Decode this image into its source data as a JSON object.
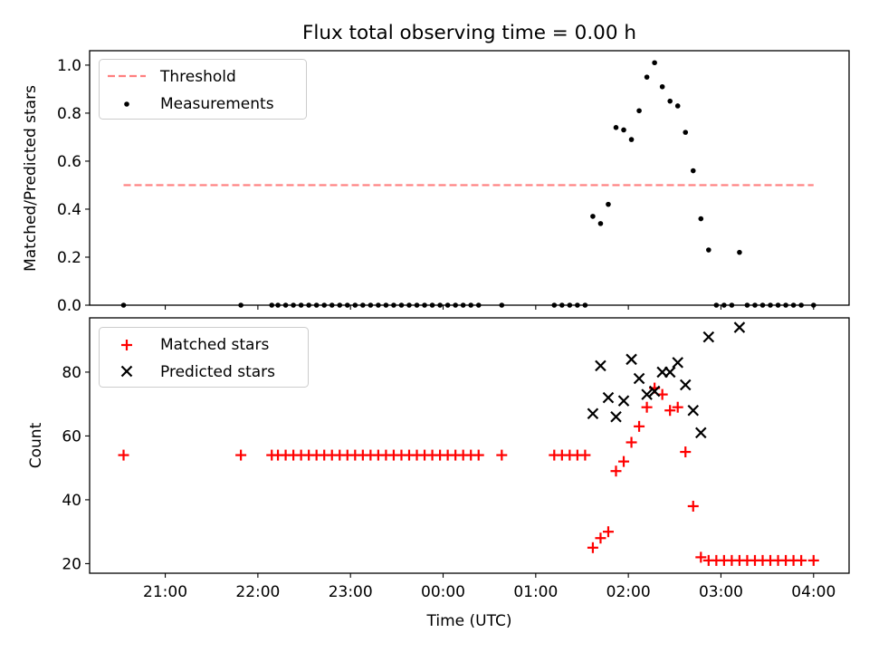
{
  "chart_data": [
    {
      "type": "scatter",
      "title": "Flux total observing time = 0.00 h",
      "xlabel": "",
      "ylabel": "Matched/Predicted stars",
      "ylim": [
        0,
        1.06
      ],
      "yticks": [
        "0.0",
        "0.2",
        "0.4",
        "0.6",
        "0.8",
        "1.0"
      ],
      "grid": false,
      "legend_position": "top-left",
      "threshold": {
        "name": "Threshold",
        "value": 0.5,
        "x_start": "20:33",
        "x_end": "04:00",
        "color": "#ff7f7f",
        "style": "dashed"
      },
      "series": [
        {
          "name": "Measurements",
          "color": "#000000",
          "marker": "dot",
          "x": [
            "20:33",
            "21:49",
            "22:09",
            "22:13",
            "22:18",
            "22:23",
            "22:28",
            "22:33",
            "22:38",
            "22:43",
            "22:48",
            "22:53",
            "22:58",
            "23:03",
            "23:08",
            "23:13",
            "23:18",
            "23:23",
            "23:28",
            "23:33",
            "23:38",
            "23:43",
            "23:48",
            "23:53",
            "23:58",
            "00:03",
            "00:08",
            "00:13",
            "00:18",
            "00:23",
            "00:38",
            "01:12",
            "01:17",
            "01:22",
            "01:27",
            "01:32",
            "01:37",
            "01:42",
            "01:47",
            "01:52",
            "01:57",
            "02:02",
            "02:07",
            "02:12",
            "02:17",
            "02:22",
            "02:27",
            "02:32",
            "02:37",
            "02:42",
            "02:47",
            "02:52",
            "02:57",
            "03:02",
            "03:07",
            "03:12",
            "03:17",
            "03:22",
            "03:27",
            "03:32",
            "03:37",
            "03:42",
            "03:47",
            "03:52",
            "04:00"
          ],
          "y": [
            0,
            0,
            0,
            0,
            0,
            0,
            0,
            0,
            0,
            0,
            0,
            0,
            0,
            0,
            0,
            0,
            0,
            0,
            0,
            0,
            0,
            0,
            0,
            0,
            0,
            0,
            0,
            0,
            0,
            0,
            0,
            0,
            0,
            0,
            0,
            0,
            0.37,
            0.34,
            0.42,
            0.74,
            0.73,
            0.69,
            0.81,
            0.95,
            1.01,
            0.91,
            0.85,
            0.83,
            0.72,
            0.56,
            0.36,
            0.23,
            0,
            0,
            0,
            0.22,
            0,
            0,
            0,
            0,
            0,
            0,
            0,
            0,
            0
          ]
        }
      ]
    },
    {
      "type": "scatter",
      "title": "",
      "xlabel": "Time (UTC)",
      "ylabel": "Count",
      "xlim": [
        "20:11",
        "04:23"
      ],
      "xticks": [
        "21:00",
        "22:00",
        "23:00",
        "00:00",
        "01:00",
        "02:00",
        "03:00",
        "04:00"
      ],
      "ylim": [
        17,
        97
      ],
      "yticks": [
        "20",
        "40",
        "60",
        "80"
      ],
      "grid": false,
      "legend_position": "top-left",
      "series": [
        {
          "name": "Matched stars",
          "color": "#ff0000",
          "marker": "plus",
          "x": [
            "20:33",
            "21:49",
            "22:09",
            "22:13",
            "22:18",
            "22:23",
            "22:28",
            "22:33",
            "22:38",
            "22:43",
            "22:48",
            "22:53",
            "22:58",
            "23:03",
            "23:08",
            "23:13",
            "23:18",
            "23:23",
            "23:28",
            "23:33",
            "23:38",
            "23:43",
            "23:48",
            "23:53",
            "23:58",
            "00:03",
            "00:08",
            "00:13",
            "00:18",
            "00:23",
            "00:38",
            "01:12",
            "01:17",
            "01:22",
            "01:27",
            "01:32",
            "01:37",
            "01:42",
            "01:47",
            "01:52",
            "01:57",
            "02:02",
            "02:07",
            "02:12",
            "02:17",
            "02:22",
            "02:27",
            "02:32",
            "02:37",
            "02:42",
            "02:47",
            "02:52",
            "02:57",
            "03:02",
            "03:07",
            "03:12",
            "03:17",
            "03:22",
            "03:27",
            "03:32",
            "03:37",
            "03:42",
            "03:47",
            "03:52",
            "04:00"
          ],
          "y": [
            54,
            54,
            54,
            54,
            54,
            54,
            54,
            54,
            54,
            54,
            54,
            54,
            54,
            54,
            54,
            54,
            54,
            54,
            54,
            54,
            54,
            54,
            54,
            54,
            54,
            54,
            54,
            54,
            54,
            54,
            54,
            54,
            54,
            54,
            54,
            54,
            25,
            28,
            30,
            49,
            52,
            58,
            63,
            69,
            75,
            73,
            68,
            69,
            55,
            38,
            22,
            21,
            21,
            21,
            21,
            21,
            21,
            21,
            21,
            21,
            21,
            21,
            21,
            21,
            21
          ]
        },
        {
          "name": "Predicted stars",
          "color": "#000000",
          "marker": "x",
          "x": [
            "01:37",
            "01:42",
            "01:47",
            "01:52",
            "01:57",
            "02:02",
            "02:07",
            "02:12",
            "02:17",
            "02:22",
            "02:27",
            "02:32",
            "02:37",
            "02:42",
            "02:47",
            "02:52",
            "03:12"
          ],
          "y": [
            67,
            82,
            72,
            66,
            71,
            84,
            78,
            73,
            74,
            80,
            80,
            83,
            76,
            68,
            61,
            91,
            94
          ]
        }
      ]
    }
  ]
}
